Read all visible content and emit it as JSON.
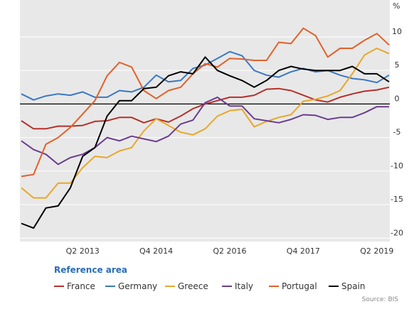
{
  "chart_data": {
    "type": "line",
    "categories": [
      null,
      null,
      null,
      null,
      null,
      "Q2 2013",
      null,
      null,
      null,
      null,
      null,
      "Q4 2014",
      null,
      null,
      null,
      null,
      null,
      "Q2 2016",
      null,
      null,
      null,
      null,
      null,
      "Q4 2017",
      null,
      null,
      null,
      null,
      null,
      "Q2 2019",
      null
    ],
    "y_unit": "%",
    "ylim": [
      -20.5,
      15.5
    ],
    "yticks": [
      -20,
      -15,
      -10,
      -5,
      0,
      5,
      10
    ],
    "grid": true,
    "legend_title": "Reference area",
    "source": "Source: BIS",
    "series": [
      {
        "name": "France",
        "color": "#b5302a",
        "values": [
          -2.5,
          -3.7,
          -3.7,
          -3.3,
          -3.3,
          -3.2,
          -2.6,
          -2.5,
          -2.0,
          -2.0,
          -2.8,
          -2.2,
          -2.7,
          -1.8,
          -0.7,
          0.0,
          0.5,
          1.0,
          1.0,
          1.3,
          2.2,
          2.3,
          2.0,
          1.3,
          0.6,
          0.3,
          1.0,
          1.5,
          1.9,
          2.1,
          2.5
        ]
      },
      {
        "name": "Germany",
        "color": "#3a78c2",
        "values": [
          1.5,
          0.6,
          1.2,
          1.5,
          1.3,
          1.8,
          1.0,
          1.0,
          2.0,
          1.8,
          2.5,
          4.3,
          3.3,
          3.5,
          5.3,
          5.8,
          6.8,
          7.8,
          7.2,
          5.0,
          4.3,
          4.0,
          4.8,
          5.3,
          4.8,
          5.0,
          4.3,
          3.8,
          3.6,
          3.2,
          4.3
        ]
      },
      {
        "name": "Greece",
        "color": "#e8a72a",
        "values": [
          -12.5,
          -14,
          -14,
          -11.8,
          -11.8,
          -9.5,
          -7.8,
          -8.0,
          -7.0,
          -6.5,
          -4.0,
          -2.2,
          -3.2,
          -4.2,
          -4.6,
          -3.7,
          -1.8,
          -1.0,
          -0.8,
          -3.4,
          -2.6,
          -2,
          -1.6,
          0.4,
          0.7,
          1.2,
          2,
          4.5,
          7.3,
          8.3,
          7.5
        ]
      },
      {
        "name": "Italy",
        "color": "#6a3d8f",
        "values": [
          -5.5,
          -6.8,
          -7.5,
          -9,
          -8,
          -7.5,
          -6.5,
          -5,
          -5.5,
          -4.8,
          -5.2,
          -5.6,
          -4.8,
          -3,
          -2.4,
          0.2,
          1,
          -0.3,
          -0.3,
          -2.2,
          -2.5,
          -2.8,
          -2.3,
          -1.6,
          -1.7,
          -2.3,
          -2,
          -2,
          -1.3,
          -0.4,
          -0.4
        ]
      },
      {
        "name": "Portugal",
        "color": "#e0612a",
        "values": [
          -10.8,
          -10.5,
          -6,
          -5,
          -3.5,
          -1.5,
          0.5,
          4.2,
          6.2,
          5.5,
          2,
          0.8,
          2,
          2.5,
          4.5,
          6,
          5.5,
          6.8,
          6.7,
          6.5,
          6.5,
          9.2,
          9,
          11.3,
          10.2,
          7,
          8.3,
          8.3,
          9.5,
          10.5,
          8.8
        ]
      },
      {
        "name": "Spain",
        "color": "#000000",
        "values": [
          -17.8,
          -18.5,
          -15.5,
          -15.2,
          -12.5,
          -7.8,
          -6.5,
          -1.8,
          0.5,
          0.5,
          2.3,
          2.5,
          4.2,
          4.8,
          4.5,
          7,
          5,
          4.2,
          3.5,
          2.5,
          3.5,
          5,
          5.6,
          5.2,
          5,
          5,
          5,
          5.6,
          4.5,
          4.5,
          3.3
        ]
      }
    ]
  }
}
